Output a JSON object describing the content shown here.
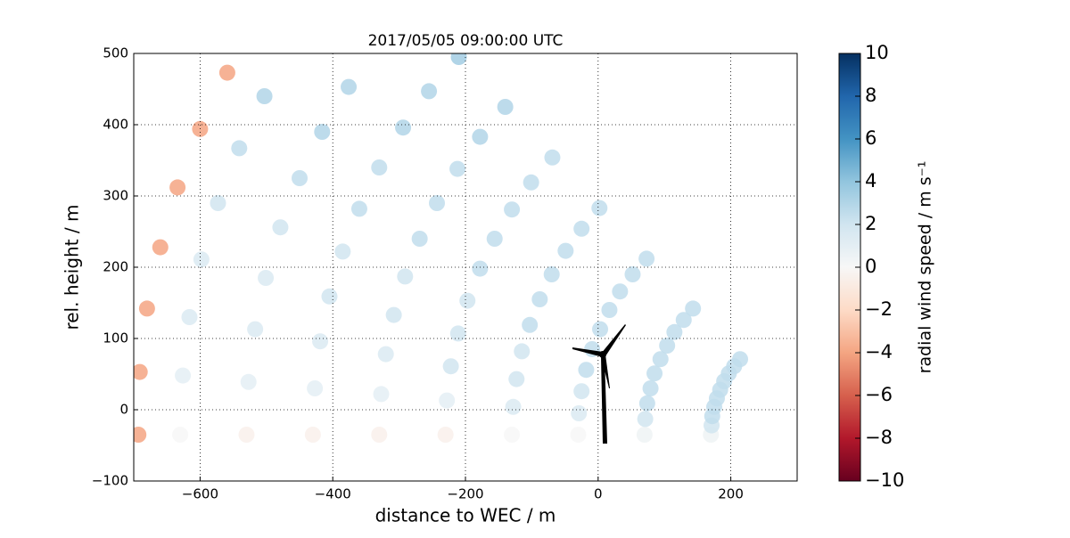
{
  "chart_data": {
    "type": "scatter",
    "title": "2017/05/05 09:00:00 UTC",
    "x_label": "distance to WEC / m",
    "y_label": "rel. height / m",
    "colorbar_label": "radial wind speed / m s⁻¹",
    "colormap": "RdBu",
    "grid": true,
    "xlim": [
      -700,
      300
    ],
    "ylim": [
      -100,
      500
    ],
    "clim": [
      -10,
      10
    ],
    "xticks": [
      {
        "value": -600,
        "label": "−600"
      },
      {
        "value": -400,
        "label": "−400"
      },
      {
        "value": -200,
        "label": "−200"
      },
      0,
      200
    ],
    "yticks": [
      {
        "value": -100,
        "label": "−100"
      },
      0,
      100,
      200,
      300,
      400,
      500
    ],
    "cticks": [
      {
        "value": -10,
        "label": "−10"
      },
      {
        "value": -8,
        "label": "−8"
      },
      {
        "value": -6,
        "label": "−6"
      },
      {
        "value": -4,
        "label": "−4"
      },
      {
        "value": -2,
        "label": "−2"
      },
      0,
      2,
      4,
      6,
      8,
      10
    ],
    "x": [
      170,
      171,
      172,
      175,
      179,
      184,
      190,
      197,
      205,
      214,
      70,
      71,
      74,
      79,
      85,
      94,
      104,
      115,
      129,
      143,
      -30,
      -29,
      -25,
      -18,
      -9,
      3,
      17,
      33,
      52,
      73,
      -130,
      -128,
      -123,
      -115,
      -103,
      -88,
      -70,
      -49,
      -25,
      2,
      -230,
      -228,
      -222,
      -211,
      -197,
      -178,
      -156,
      -130,
      -101,
      -69,
      -330,
      -327,
      -320,
      -308,
      -291,
      -269,
      -243,
      -212,
      -178,
      -140,
      -430,
      -427,
      -419,
      -405,
      -385,
      -360,
      -330,
      -294,
      -255,
      -210,
      -530,
      -527,
      -517,
      -501,
      -479,
      -450,
      -416,
      -376,
      -630,
      -626,
      -616,
      -598,
      -573,
      -541,
      -503,
      -693,
      -691,
      -680,
      -660,
      -634,
      -600,
      -559
    ],
    "y": [
      -35,
      -22,
      -9,
      4,
      16,
      28,
      40,
      51,
      61,
      71,
      -35,
      -13,
      9,
      30,
      51,
      71,
      90,
      109,
      126,
      142,
      -35,
      -5,
      26,
      56,
      85,
      113,
      140,
      166,
      190,
      212,
      -35,
      4,
      43,
      82,
      119,
      155,
      190,
      223,
      254,
      283,
      -35,
      13,
      61,
      107,
      153,
      198,
      240,
      281,
      319,
      354,
      -35,
      22,
      78,
      133,
      187,
      240,
      290,
      338,
      383,
      425,
      -35,
      30,
      96,
      159,
      222,
      282,
      340,
      396,
      447,
      495,
      -35,
      39,
      113,
      185,
      256,
      325,
      390,
      453,
      -35,
      48,
      130,
      211,
      290,
      367,
      440,
      -35,
      53,
      142,
      228,
      312,
      394,
      473
    ],
    "values": [
      0.5,
      2,
      2.5,
      2.5,
      2.5,
      2.5,
      2.5,
      2.5,
      2.5,
      2.5,
      0.5,
      2,
      2.5,
      2.5,
      2.5,
      2.5,
      2.5,
      2.5,
      2.5,
      2.5,
      0,
      1.5,
      2,
      2.5,
      2.5,
      2.5,
      2.5,
      2.5,
      2.5,
      2.5,
      0,
      1.5,
      2,
      2,
      2.5,
      2.5,
      2.5,
      2.5,
      2.5,
      2.5,
      -0.5,
      1,
      2,
      2,
      2,
      2.5,
      2.5,
      2.5,
      2.5,
      2.5,
      -0.5,
      1,
      1.5,
      2,
      2,
      2.5,
      2.5,
      2.5,
      3,
      3,
      -0.5,
      1,
      1.5,
      2,
      2,
      2.5,
      2.5,
      3,
      3,
      3.5,
      -0.5,
      1,
      1.5,
      1.5,
      2,
      2.5,
      3,
      3,
      0,
      1,
      1.5,
      1.5,
      2,
      2.5,
      3,
      -4,
      -4,
      -4,
      -4,
      -4,
      -4,
      -4
    ]
  }
}
